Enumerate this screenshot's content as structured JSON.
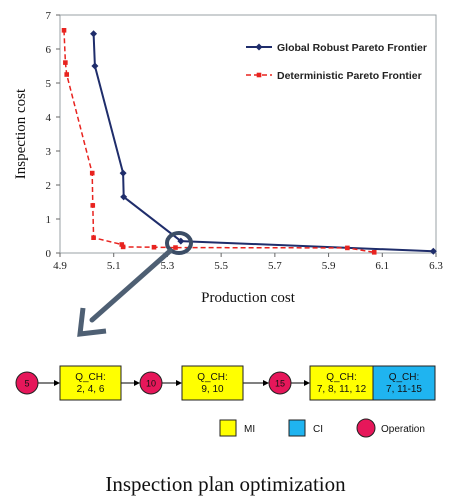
{
  "chart_data": {
    "type": "line",
    "xlabel": "Production cost",
    "ylabel": "Inspection cost",
    "xlim": [
      4.9,
      6.3
    ],
    "ylim": [
      0,
      7
    ],
    "xticks": [
      "4.9",
      "5.1",
      "5.3",
      "5.5",
      "5.7",
      "5.9",
      "6.1",
      "6.3"
    ],
    "yticks": [
      "0",
      "1",
      "2",
      "3",
      "4",
      "5",
      "6",
      "7"
    ],
    "grid": false,
    "legend_position": "top-right",
    "series": [
      {
        "name": "Global Robust Pareto Frontier",
        "color": "#1f2d6b",
        "style": "solid",
        "marker": "diamond",
        "points": [
          [
            5.025,
            6.45
          ],
          [
            5.03,
            5.5
          ],
          [
            5.135,
            2.35
          ],
          [
            5.137,
            1.65
          ],
          [
            5.35,
            0.35
          ],
          [
            6.29,
            0.05
          ]
        ]
      },
      {
        "name": "Deterministic Pareto Frontier",
        "color": "#e8231f",
        "style": "dashed",
        "marker": "square",
        "points": [
          [
            4.915,
            6.55
          ],
          [
            4.92,
            5.6
          ],
          [
            4.925,
            5.25
          ],
          [
            5.02,
            2.35
          ],
          [
            5.022,
            1.4
          ],
          [
            5.025,
            0.45
          ],
          [
            5.13,
            0.25
          ],
          [
            5.135,
            0.18
          ],
          [
            5.25,
            0.17
          ],
          [
            5.33,
            0.16
          ],
          [
            5.97,
            0.15
          ],
          [
            6.07,
            0.02
          ]
        ]
      }
    ]
  },
  "plan": {
    "nodes": [
      {
        "kind": "op",
        "label": "5"
      },
      {
        "kind": "mi",
        "lines": [
          "Q_CH:",
          "2, 4, 6"
        ]
      },
      {
        "kind": "op",
        "label": "10"
      },
      {
        "kind": "mi",
        "lines": [
          "Q_CH:",
          "9, 10"
        ]
      },
      {
        "kind": "op",
        "label": "15"
      },
      {
        "kind": "mi",
        "lines": [
          "Q_CH:",
          "7, 8, 11, 12"
        ]
      },
      {
        "kind": "ci",
        "lines": [
          "Q_CH:",
          "7, 11-15"
        ]
      }
    ],
    "legend": {
      "mi": "MI",
      "ci": "CI",
      "op": "Operation"
    }
  },
  "colors": {
    "mi": "#ffff00",
    "ci": "#1fb4f0",
    "op": "#e6175a",
    "arrow": "#4e5f73",
    "highlight": "#3b4d66"
  },
  "caption": "Inspection plan optimization"
}
